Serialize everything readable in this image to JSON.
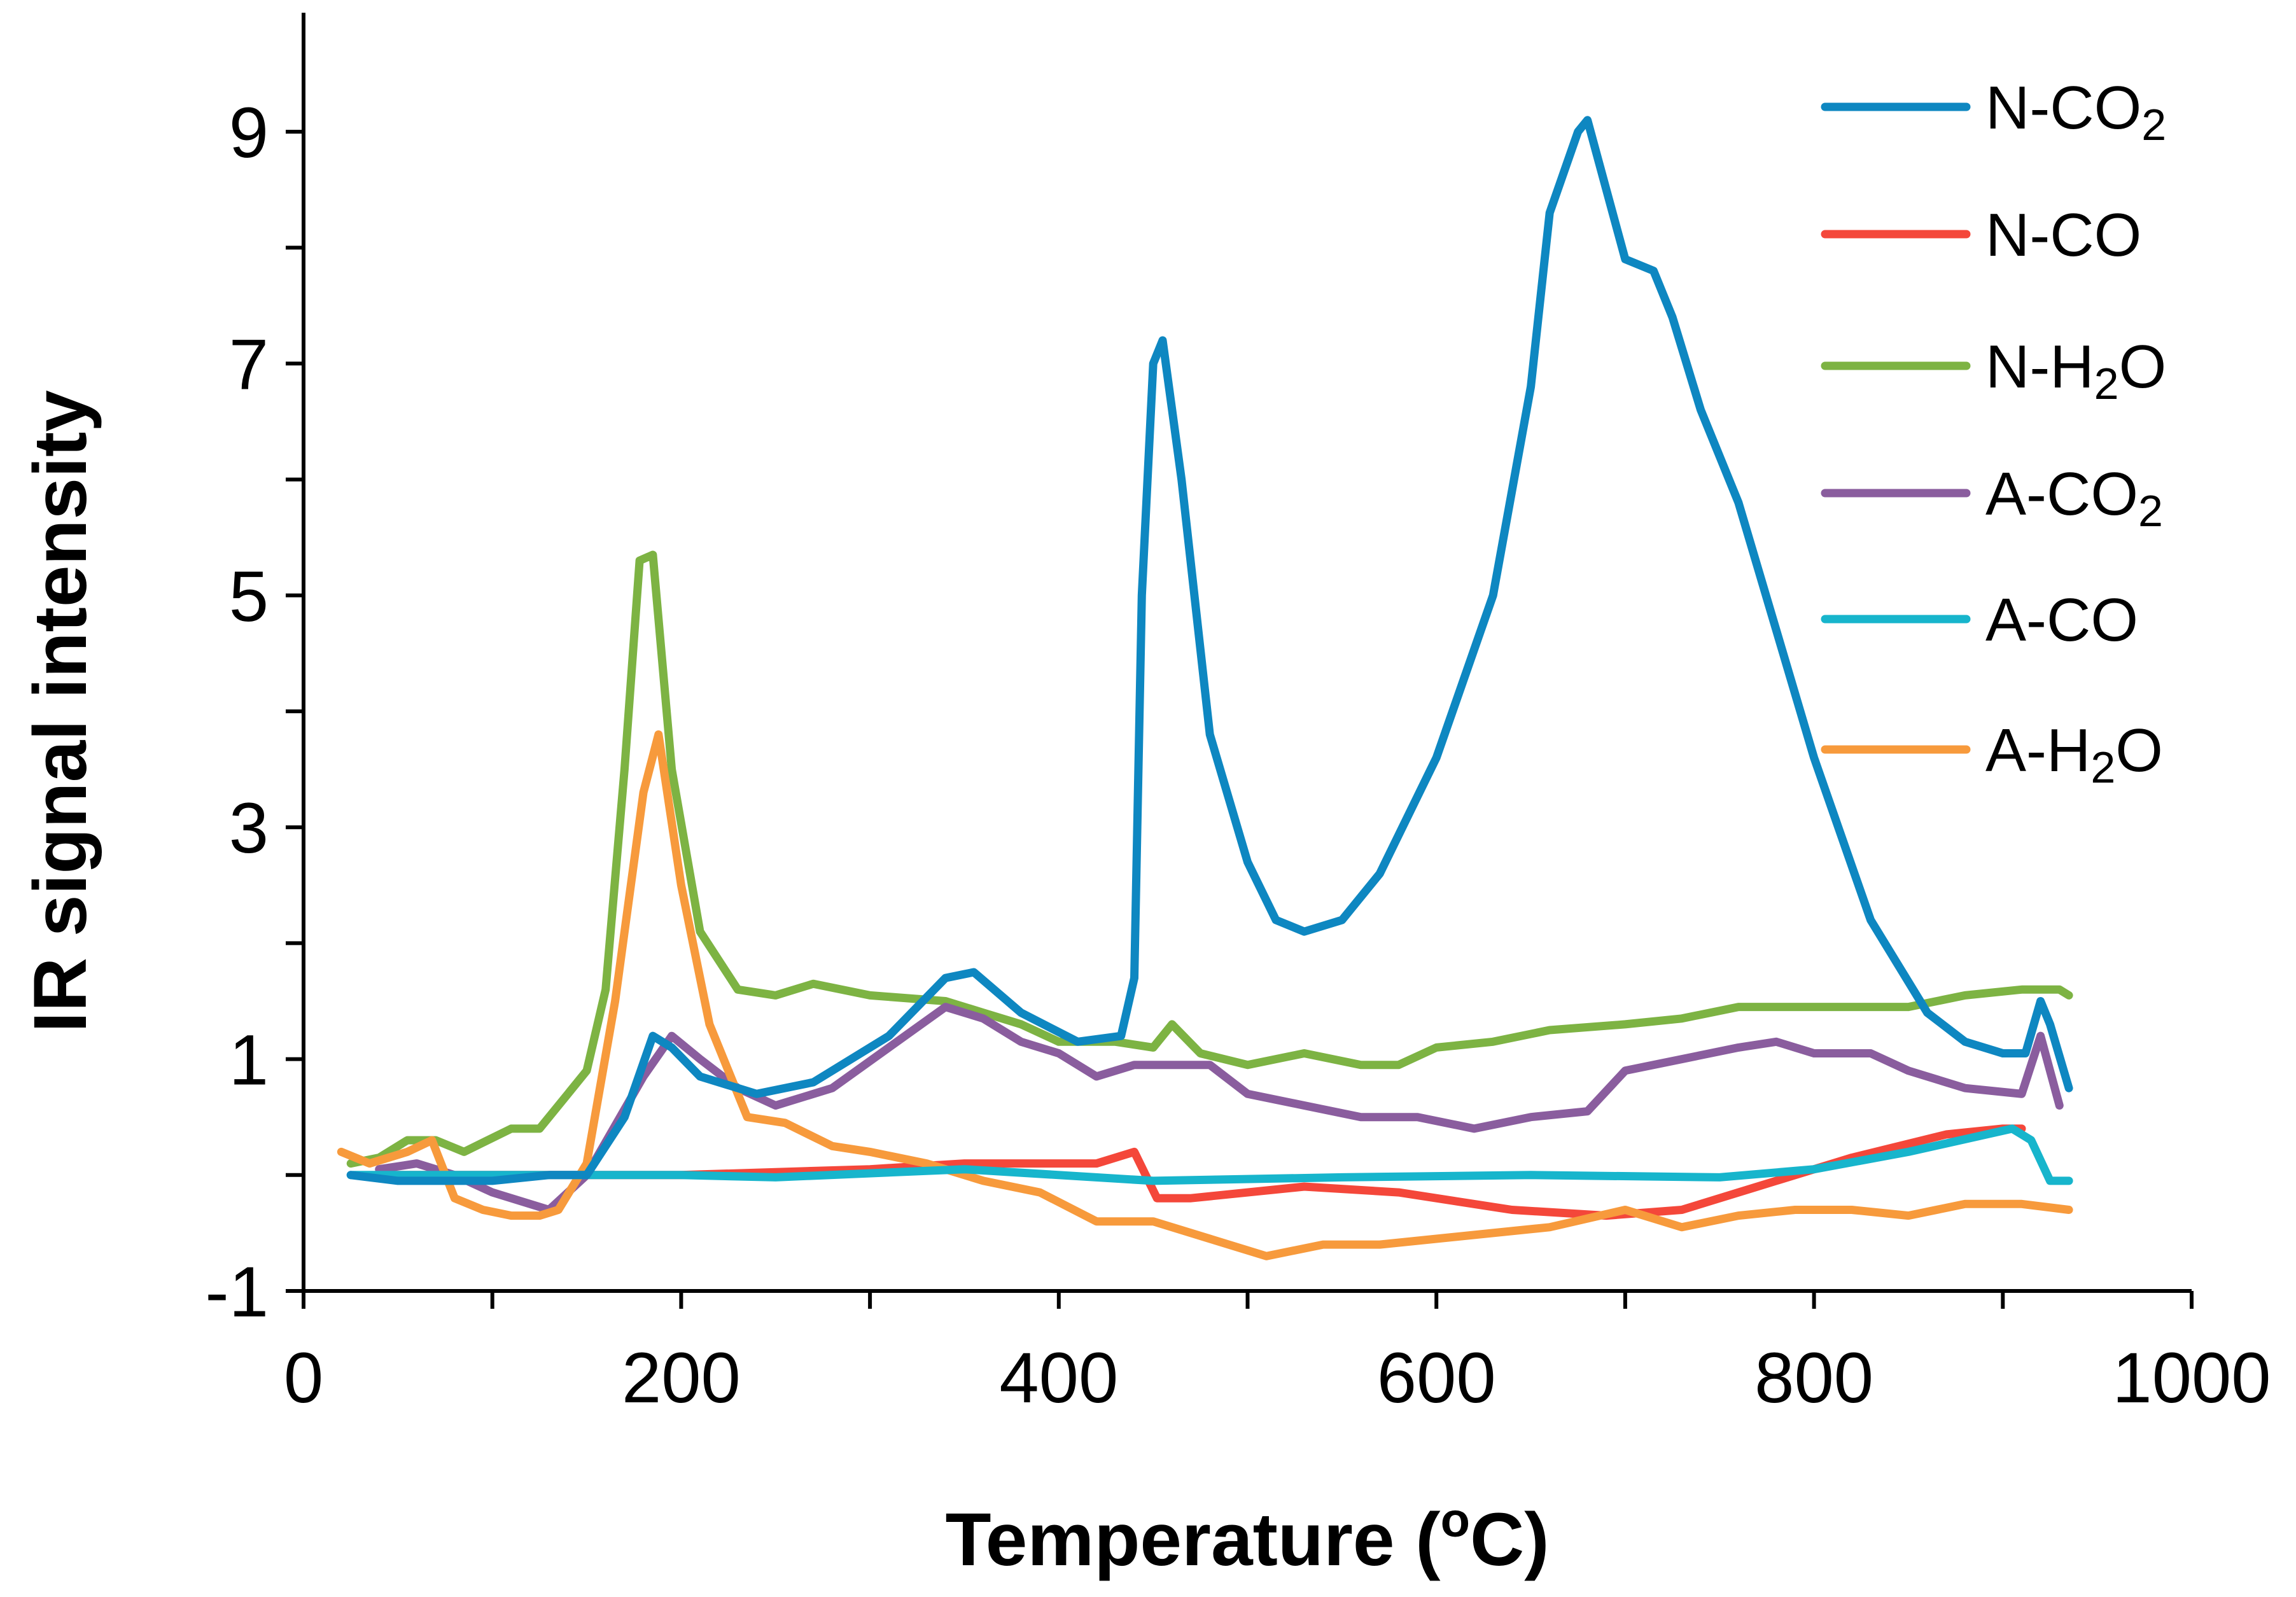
{
  "chart_data": {
    "type": "line",
    "title": "",
    "xlabel": "Temperature (",
    "xlabel_sup": "o",
    "xlabel_end": "C)",
    "ylabel": "IR signal intensity",
    "xlim": [
      0,
      1000
    ],
    "ylim": [
      -1,
      10
    ],
    "xticks": [
      0,
      200,
      400,
      600,
      800,
      1000
    ],
    "xtick_labels": [
      "0",
      "200",
      "400",
      "600",
      "800",
      "1000"
    ],
    "xminor": [
      100,
      300,
      500,
      700,
      900
    ],
    "yticks": [
      -1,
      1,
      3,
      5,
      7,
      9
    ],
    "ytick_labels": [
      "-1",
      "1",
      "3",
      "5",
      "7",
      "9"
    ],
    "yminor": [
      0,
      2,
      4,
      6,
      8
    ],
    "grid": false,
    "legend_position": "top-right",
    "series": [
      {
        "name": "N-CO2",
        "label_main": "N-CO",
        "label_sub": "2",
        "label_end": "",
        "color": "#0e87c1",
        "points": [
          [
            25,
            0
          ],
          [
            50,
            -0.05
          ],
          [
            100,
            -0.05
          ],
          [
            130,
            0.0
          ],
          [
            150,
            0.0
          ],
          [
            170,
            0.5
          ],
          [
            185,
            1.2
          ],
          [
            195,
            1.1
          ],
          [
            210,
            0.85
          ],
          [
            240,
            0.7
          ],
          [
            270,
            0.8
          ],
          [
            310,
            1.2
          ],
          [
            340,
            1.7
          ],
          [
            355,
            1.75
          ],
          [
            380,
            1.4
          ],
          [
            410,
            1.15
          ],
          [
            433,
            1.2
          ],
          [
            440,
            1.7
          ],
          [
            444,
            5
          ],
          [
            450,
            7.0
          ],
          [
            455,
            7.2
          ],
          [
            465,
            6.0
          ],
          [
            480,
            3.8
          ],
          [
            500,
            2.7
          ],
          [
            515,
            2.2
          ],
          [
            530,
            2.1
          ],
          [
            550,
            2.2
          ],
          [
            570,
            2.6
          ],
          [
            600,
            3.6
          ],
          [
            630,
            5.0
          ],
          [
            650,
            6.8
          ],
          [
            660,
            8.3
          ],
          [
            675,
            9.0
          ],
          [
            680,
            9.1
          ],
          [
            690,
            8.5
          ],
          [
            700,
            7.9
          ],
          [
            715,
            7.8
          ],
          [
            725,
            7.4
          ],
          [
            740,
            6.6
          ],
          [
            760,
            5.8
          ],
          [
            780,
            4.7
          ],
          [
            800,
            3.6
          ],
          [
            830,
            2.2
          ],
          [
            860,
            1.4
          ],
          [
            880,
            1.15
          ],
          [
            900,
            1.05
          ],
          [
            912,
            1.05
          ],
          [
            920,
            1.5
          ],
          [
            925,
            1.3
          ],
          [
            935,
            0.75
          ]
        ]
      },
      {
        "name": "N-CO",
        "label_main": "N-CO",
        "label_sub": "",
        "label_end": "",
        "color": "#f4473a",
        "points": [
          [
            40,
            0
          ],
          [
            100,
            0
          ],
          [
            200,
            0
          ],
          [
            300,
            0.05
          ],
          [
            350,
            0.1
          ],
          [
            420,
            0.1
          ],
          [
            440,
            0.2
          ],
          [
            452,
            -0.2
          ],
          [
            470,
            -0.2
          ],
          [
            530,
            -0.1
          ],
          [
            580,
            -0.15
          ],
          [
            640,
            -0.3
          ],
          [
            690,
            -0.35
          ],
          [
            730,
            -0.3
          ],
          [
            770,
            -0.1
          ],
          [
            820,
            0.15
          ],
          [
            870,
            0.35
          ],
          [
            900,
            0.4
          ],
          [
            910,
            0.4
          ]
        ]
      },
      {
        "name": "N-H2O",
        "label_main": "N-H",
        "label_sub": "2",
        "label_end": "O",
        "color": "#7db343",
        "points": [
          [
            25,
            0.1
          ],
          [
            40,
            0.15
          ],
          [
            55,
            0.3
          ],
          [
            70,
            0.3
          ],
          [
            85,
            0.2
          ],
          [
            110,
            0.4
          ],
          [
            125,
            0.4
          ],
          [
            140,
            0.7
          ],
          [
            150,
            0.9
          ],
          [
            160,
            1.6
          ],
          [
            170,
            3.5
          ],
          [
            178,
            5.3
          ],
          [
            185,
            5.35
          ],
          [
            195,
            3.5
          ],
          [
            210,
            2.1
          ],
          [
            230,
            1.6
          ],
          [
            250,
            1.55
          ],
          [
            270,
            1.65
          ],
          [
            300,
            1.55
          ],
          [
            340,
            1.5
          ],
          [
            360,
            1.4
          ],
          [
            380,
            1.3
          ],
          [
            400,
            1.15
          ],
          [
            430,
            1.15
          ],
          [
            450,
            1.1
          ],
          [
            460,
            1.3
          ],
          [
            475,
            1.05
          ],
          [
            500,
            0.95
          ],
          [
            530,
            1.05
          ],
          [
            560,
            0.95
          ],
          [
            580,
            0.95
          ],
          [
            600,
            1.1
          ],
          [
            630,
            1.15
          ],
          [
            660,
            1.25
          ],
          [
            700,
            1.3
          ],
          [
            730,
            1.35
          ],
          [
            760,
            1.45
          ],
          [
            800,
            1.45
          ],
          [
            830,
            1.45
          ],
          [
            850,
            1.45
          ],
          [
            880,
            1.55
          ],
          [
            910,
            1.6
          ],
          [
            930,
            1.6
          ],
          [
            935,
            1.55
          ]
        ]
      },
      {
        "name": "A-CO2",
        "label_main": "A-CO",
        "label_sub": "2",
        "label_end": "",
        "color": "#8a5d9e",
        "points": [
          [
            40,
            0.05
          ],
          [
            60,
            0.1
          ],
          [
            80,
            0.0
          ],
          [
            100,
            -0.15
          ],
          [
            130,
            -0.3
          ],
          [
            150,
            0.0
          ],
          [
            180,
            0.85
          ],
          [
            195,
            1.2
          ],
          [
            210,
            1.0
          ],
          [
            230,
            0.75
          ],
          [
            250,
            0.6
          ],
          [
            280,
            0.75
          ],
          [
            310,
            1.1
          ],
          [
            340,
            1.45
          ],
          [
            360,
            1.35
          ],
          [
            380,
            1.15
          ],
          [
            400,
            1.05
          ],
          [
            420,
            0.85
          ],
          [
            440,
            0.95
          ],
          [
            460,
            0.95
          ],
          [
            480,
            0.95
          ],
          [
            500,
            0.7
          ],
          [
            530,
            0.6
          ],
          [
            560,
            0.5
          ],
          [
            590,
            0.5
          ],
          [
            620,
            0.4
          ],
          [
            650,
            0.5
          ],
          [
            680,
            0.55
          ],
          [
            700,
            0.9
          ],
          [
            730,
            1.0
          ],
          [
            760,
            1.1
          ],
          [
            780,
            1.15
          ],
          [
            800,
            1.05
          ],
          [
            830,
            1.05
          ],
          [
            850,
            0.9
          ],
          [
            880,
            0.75
          ],
          [
            910,
            0.7
          ],
          [
            920,
            1.2
          ],
          [
            930,
            0.6
          ]
        ]
      },
      {
        "name": "A-CO",
        "label_main": "A-CO",
        "label_sub": "",
        "label_end": "",
        "color": "#17b5cc",
        "points": [
          [
            25,
            0
          ],
          [
            100,
            0
          ],
          [
            200,
            0
          ],
          [
            250,
            -0.02
          ],
          [
            350,
            0.05
          ],
          [
            450,
            -0.05
          ],
          [
            550,
            -0.02
          ],
          [
            650,
            0.0
          ],
          [
            750,
            -0.02
          ],
          [
            800,
            0.05
          ],
          [
            850,
            0.2
          ],
          [
            905,
            0.4
          ],
          [
            915,
            0.3
          ],
          [
            925,
            -0.05
          ],
          [
            935,
            -0.05
          ]
        ]
      },
      {
        "name": "A-H2O",
        "label_main": "A-H",
        "label_sub": "2",
        "label_end": "O",
        "color": "#f79a3c",
        "points": [
          [
            20,
            0.2
          ],
          [
            35,
            0.1
          ],
          [
            45,
            0.15
          ],
          [
            55,
            0.2
          ],
          [
            68,
            0.3
          ],
          [
            80,
            -0.2
          ],
          [
            95,
            -0.3
          ],
          [
            110,
            -0.35
          ],
          [
            125,
            -0.35
          ],
          [
            135,
            -0.3
          ],
          [
            150,
            0.1
          ],
          [
            165,
            1.5
          ],
          [
            180,
            3.3
          ],
          [
            188,
            3.8
          ],
          [
            200,
            2.5
          ],
          [
            215,
            1.3
          ],
          [
            235,
            0.5
          ],
          [
            255,
            0.45
          ],
          [
            280,
            0.25
          ],
          [
            300,
            0.2
          ],
          [
            330,
            0.1
          ],
          [
            360,
            -0.05
          ],
          [
            390,
            -0.15
          ],
          [
            420,
            -0.4
          ],
          [
            450,
            -0.4
          ],
          [
            480,
            -0.55
          ],
          [
            510,
            -0.7
          ],
          [
            540,
            -0.6
          ],
          [
            570,
            -0.6
          ],
          [
            600,
            -0.55
          ],
          [
            630,
            -0.5
          ],
          [
            660,
            -0.45
          ],
          [
            700,
            -0.3
          ],
          [
            730,
            -0.45
          ],
          [
            760,
            -0.35
          ],
          [
            790,
            -0.3
          ],
          [
            820,
            -0.3
          ],
          [
            850,
            -0.35
          ],
          [
            880,
            -0.25
          ],
          [
            910,
            -0.25
          ],
          [
            935,
            -0.3
          ]
        ]
      }
    ]
  }
}
